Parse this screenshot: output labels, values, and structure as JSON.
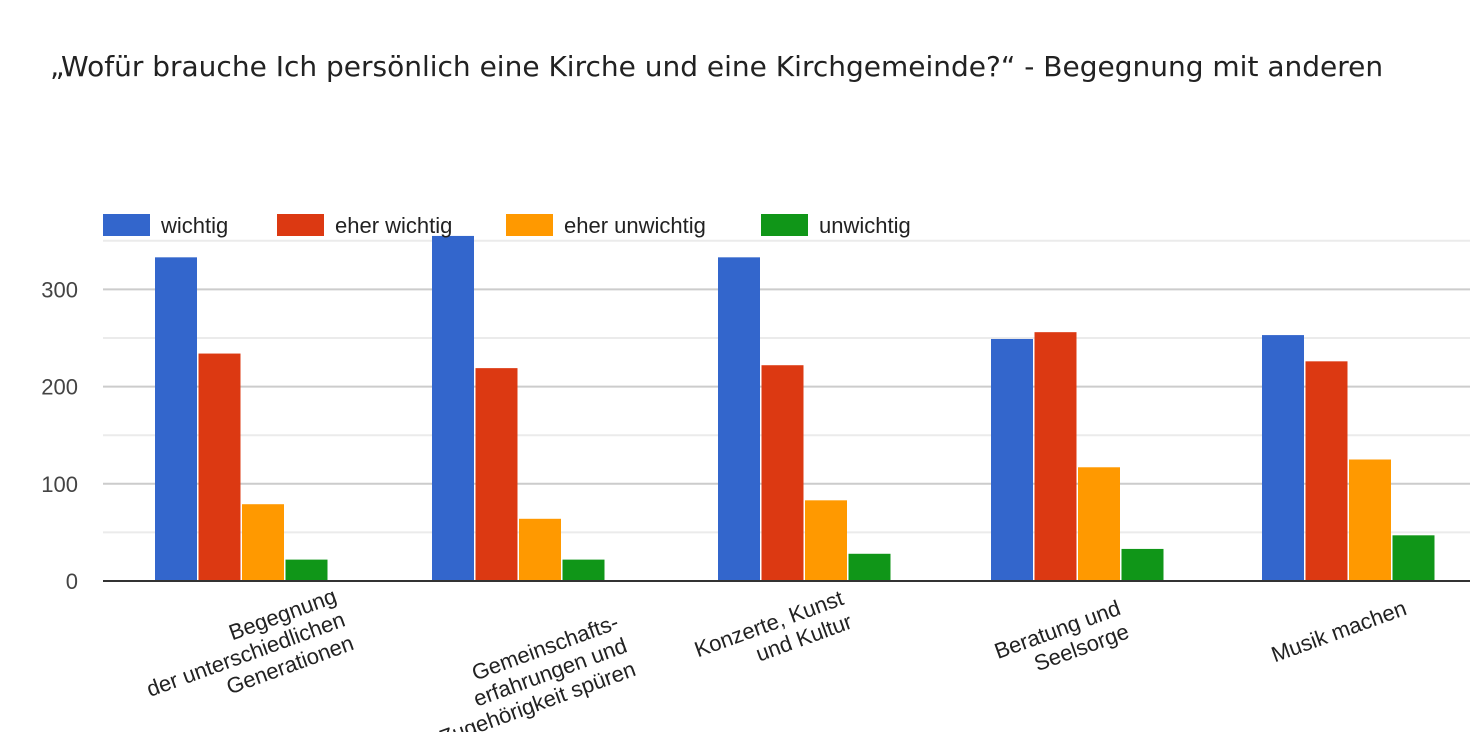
{
  "chart_data": {
    "type": "bar",
    "title": "„Wofür brauche Ich persönlich eine Kirche und eine Kirchgemeinde?“ - Begegnung mit anderen",
    "categories": [
      [
        "Begegnung",
        "der unterschiedlichen",
        "Generationen"
      ],
      [
        "Gemeinschafts-",
        "erfahrungen und",
        "Zugehörigkeit spüren"
      ],
      [
        "Konzerte, Kunst",
        "und Kultur"
      ],
      [
        "Beratung und",
        "Seelsorge"
      ],
      [
        "Musik machen"
      ]
    ],
    "series": [
      {
        "name": "wichtig",
        "color": "#3366cc",
        "values": [
          333,
          355,
          333,
          249,
          253
        ]
      },
      {
        "name": "eher wichtig",
        "color": "#dc3912",
        "values": [
          234,
          219,
          222,
          256,
          226
        ]
      },
      {
        "name": "eher unwichtig",
        "color": "#ff9900",
        "values": [
          79,
          64,
          83,
          117,
          125
        ]
      },
      {
        "name": "unwichtig",
        "color": "#109618",
        "values": [
          22,
          22,
          28,
          33,
          47
        ]
      }
    ],
    "y_ticks": [
      0,
      100,
      200,
      300
    ],
    "ylim": [
      0,
      350
    ],
    "xlabel": "",
    "ylabel": "",
    "grid": true,
    "legend_position": "top-left"
  }
}
